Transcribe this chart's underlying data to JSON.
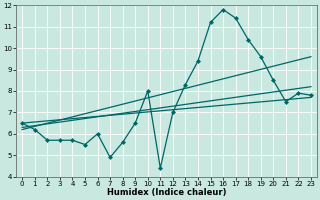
{
  "xlabel": "Humidex (Indice chaleur)",
  "ylabel": "",
  "xlim": [
    -0.5,
    23.5
  ],
  "ylim": [
    4,
    12
  ],
  "xticks": [
    0,
    1,
    2,
    3,
    4,
    5,
    6,
    7,
    8,
    9,
    10,
    11,
    12,
    13,
    14,
    15,
    16,
    17,
    18,
    19,
    20,
    21,
    22,
    23
  ],
  "yticks": [
    4,
    5,
    6,
    7,
    8,
    9,
    10,
    11,
    12
  ],
  "bg_color": "#c8e8e0",
  "line_color": "#006666",
  "grid_color": "#ffffff",
  "main_x": [
    0,
    1,
    2,
    3,
    4,
    5,
    6,
    7,
    8,
    9,
    10,
    11,
    12,
    13,
    14,
    15,
    16,
    17,
    18,
    19,
    20,
    21,
    22,
    23
  ],
  "main_y": [
    6.5,
    6.2,
    5.7,
    5.7,
    5.7,
    5.5,
    6.0,
    4.9,
    5.6,
    6.5,
    8.0,
    4.4,
    7.0,
    8.3,
    9.4,
    11.2,
    11.8,
    11.4,
    10.4,
    9.6,
    8.5,
    7.5,
    7.9,
    7.8
  ],
  "trend1_x": [
    0,
    23
  ],
  "trend1_y": [
    6.5,
    7.7
  ],
  "trend2_x": [
    0,
    23
  ],
  "trend2_y": [
    6.3,
    8.2
  ],
  "trend3_x": [
    0,
    23
  ],
  "trend3_y": [
    6.2,
    9.6
  ]
}
